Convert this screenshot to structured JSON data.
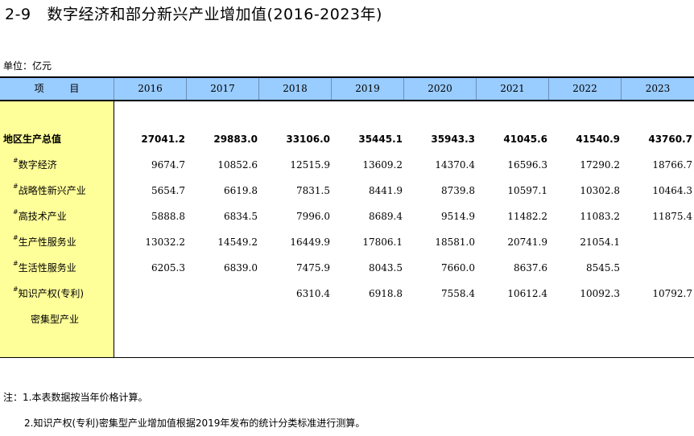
{
  "title": {
    "code": "2-9",
    "text": "数字经济和部分新兴产业增加值(2016-2023年)"
  },
  "unit": "单位：亿元",
  "table": {
    "item_header": "项 目",
    "years": [
      "2016",
      "2017",
      "2018",
      "2019",
      "2020",
      "2021",
      "2022",
      "2023"
    ],
    "rows": [
      {
        "label": "地区生产总值",
        "mark": "",
        "bold": true,
        "values": [
          "27041.2",
          "29883.0",
          "33106.0",
          "35445.1",
          "35943.3",
          "41045.6",
          "41540.9",
          "43760.7"
        ]
      },
      {
        "label": "数字经济",
        "mark": "#",
        "bold": false,
        "values": [
          "9674.7",
          "10852.6",
          "12515.9",
          "13609.2",
          "14370.4",
          "16596.3",
          "17290.2",
          "18766.7"
        ]
      },
      {
        "label": "战略性新兴产业",
        "mark": "#",
        "bold": false,
        "values": [
          "5654.7",
          "6619.8",
          "7831.5",
          "8441.9",
          "8739.8",
          "10597.1",
          "10302.8",
          "10464.3"
        ]
      },
      {
        "label": "高技术产业",
        "mark": "#",
        "bold": false,
        "values": [
          "5888.8",
          "6834.5",
          "7996.0",
          "8689.4",
          "9514.9",
          "11482.2",
          "11083.2",
          "11875.4"
        ]
      },
      {
        "label": "生产性服务业",
        "mark": "#",
        "bold": false,
        "values": [
          "13032.2",
          "14549.2",
          "16449.9",
          "17806.1",
          "18581.0",
          "20741.9",
          "21054.1",
          ""
        ]
      },
      {
        "label": "生活性服务业",
        "mark": "#",
        "bold": false,
        "values": [
          "6205.3",
          "6839.0",
          "7475.9",
          "8043.5",
          "7660.0",
          "8637.6",
          "8545.5",
          ""
        ]
      },
      {
        "label": "知识产权(专利)",
        "mark": "#",
        "bold": false,
        "values": [
          "",
          "",
          "6310.4",
          "6918.8",
          "7558.4",
          "10612.4",
          "10092.3",
          "10792.7"
        ]
      }
    ],
    "row_continuation": "密集型产业"
  },
  "notes": [
    "注：1.本表数据按当年价格计算。",
    "2.知识产权(专利)密集型产业增加值根据2019年发布的统计分类标准进行测算。"
  ]
}
